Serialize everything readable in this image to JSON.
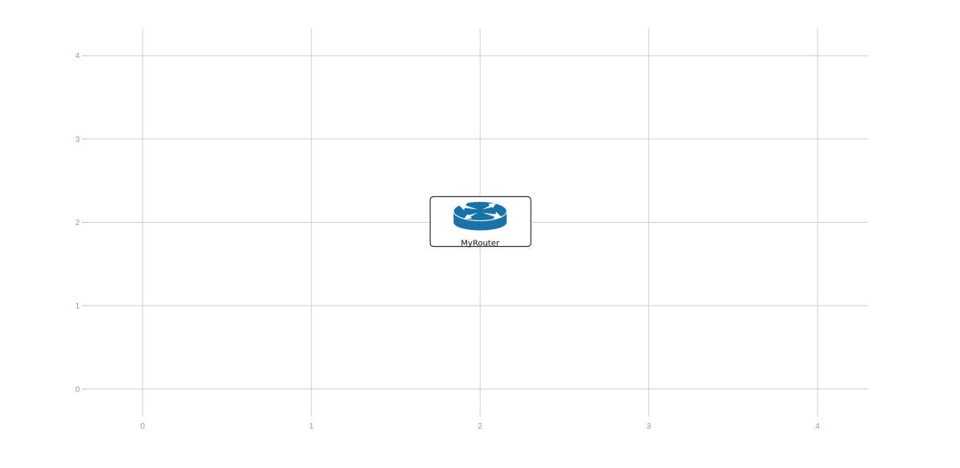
{
  "chart_data": {
    "type": "scatter",
    "x_ticks": [
      "0",
      "1",
      "2",
      "3",
      "4"
    ],
    "y_ticks": [
      "0",
      "1",
      "2",
      "3",
      "4"
    ],
    "xlim": [
      -0.33,
      4.3
    ],
    "ylim": [
      -0.33,
      4.33
    ],
    "grid": true,
    "nodes": [
      {
        "x": 2,
        "y": 2,
        "label": "MyRouter",
        "icon": "router-icon",
        "color": "#1a73a8"
      }
    ]
  }
}
